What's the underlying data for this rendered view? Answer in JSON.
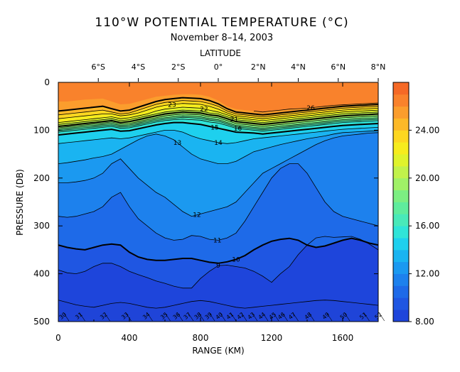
{
  "chart_data": {
    "type": "heatmap",
    "title": "110°W POTENTIAL TEMPERATURE (°C)",
    "subtitle": "November 8–14, 2003",
    "top_axis_label": "LATITUDE",
    "xlabel": "RANGE (KM)",
    "ylabel": "PRESSURE (DB)",
    "xlim": [
      0,
      1800
    ],
    "ylim": [
      500,
      0
    ],
    "x_ticks": [
      0,
      400,
      800,
      1200,
      1600
    ],
    "y_ticks": [
      0,
      100,
      200,
      300,
      400,
      500
    ],
    "latitude_ticks": [
      {
        "label": "6°S",
        "km": 225
      },
      {
        "label": "4°S",
        "km": 450
      },
      {
        "label": "2°S",
        "km": 675
      },
      {
        "label": "0°",
        "km": 900
      },
      {
        "label": "2°N",
        "km": 1125
      },
      {
        "label": "4°N",
        "km": 1350
      },
      {
        "label": "6°N",
        "km": 1575
      },
      {
        "label": "8°N",
        "km": 1800
      }
    ],
    "colorbar": {
      "min": 8,
      "max": 28,
      "step": 1,
      "tick_values": [
        8,
        12,
        16,
        20,
        24
      ],
      "tick_labels": [
        "8.00",
        "12.00",
        "16.00",
        "20.00",
        "24.00"
      ]
    },
    "contour_levels": [
      {
        "level": 26,
        "label": "26",
        "depth": [
          40,
          40,
          38,
          36,
          35,
          34,
          40,
          46,
          45,
          40,
          35,
          30,
          28,
          26,
          25,
          25,
          26,
          30,
          38,
          50,
          56,
          58,
          60,
          62,
          60,
          58,
          56,
          55,
          54,
          52,
          50,
          48,
          47,
          46,
          45,
          44,
          43
        ],
        "show": [
          false,
          false,
          false,
          false,
          false,
          false,
          false,
          false,
          false,
          false,
          false,
          false,
          false,
          false,
          false,
          false,
          false,
          false,
          false,
          false,
          false,
          false,
          true,
          true,
          true,
          true,
          true,
          true,
          true,
          true,
          true,
          true,
          true,
          true,
          true,
          true,
          true
        ],
        "label_km": 1420
      },
      {
        "level": 25,
        "label": "",
        "depth": [
          60,
          58,
          56,
          54,
          52,
          50,
          55,
          60,
          58,
          52,
          46,
          40,
          36,
          34,
          32,
          33,
          34,
          38,
          45,
          55,
          62,
          64,
          66,
          68,
          66,
          64,
          62,
          60,
          58,
          56,
          54,
          52,
          50,
          49,
          48,
          47,
          46
        ]
      },
      {
        "level": 24,
        "label": "",
        "depth": [
          68,
          66,
          64,
          62,
          60,
          58,
          62,
          66,
          64,
          58,
          52,
          46,
          42,
          40,
          38,
          39,
          40,
          44,
          50,
          60,
          66,
          68,
          70,
          72,
          70,
          68,
          66,
          64,
          62,
          60,
          58,
          56,
          54,
          53,
          52,
          51,
          50
        ]
      },
      {
        "level": 23,
        "label": "23",
        "depth": [
          76,
          74,
          72,
          70,
          68,
          66,
          66,
          70,
          68,
          64,
          58,
          52,
          48,
          46,
          44,
          45,
          46,
          50,
          56,
          64,
          70,
          72,
          74,
          76,
          74,
          72,
          70,
          68,
          66,
          64,
          62,
          60,
          58,
          57,
          56,
          55,
          54
        ],
        "label_km": 640
      },
      {
        "level": 22,
        "label": "22",
        "depth": [
          84,
          82,
          80,
          78,
          76,
          74,
          72,
          76,
          74,
          70,
          66,
          60,
          56,
          54,
          52,
          53,
          54,
          58,
          62,
          68,
          74,
          76,
          78,
          80,
          78,
          76,
          74,
          72,
          70,
          68,
          66,
          64,
          62,
          61,
          60,
          59,
          58
        ],
        "label_km": 820
      },
      {
        "level": 21,
        "label": "21",
        "depth": [
          88,
          86,
          84,
          82,
          80,
          78,
          76,
          80,
          78,
          74,
          70,
          66,
          62,
          60,
          58,
          59,
          60,
          64,
          66,
          72,
          78,
          80,
          82,
          84,
          82,
          80,
          78,
          76,
          74,
          72,
          70,
          68,
          66,
          65,
          64,
          63,
          62
        ],
        "label_km": 990
      },
      {
        "level": 20,
        "label": "",
        "depth": [
          92,
          90,
          88,
          86,
          84,
          82,
          80,
          84,
          82,
          78,
          74,
          70,
          66,
          64,
          62,
          63,
          64,
          68,
          70,
          76,
          82,
          84,
          86,
          88,
          86,
          84,
          82,
          80,
          78,
          76,
          74,
          72,
          70,
          69,
          68,
          67,
          66
        ]
      },
      {
        "level": 19,
        "label": "",
        "depth": [
          95,
          93,
          91,
          89,
          87,
          85,
          83,
          87,
          86,
          82,
          78,
          74,
          70,
          68,
          66,
          67,
          68,
          72,
          74,
          80,
          86,
          88,
          90,
          92,
          90,
          88,
          86,
          84,
          82,
          80,
          78,
          76,
          74,
          73,
          72,
          71,
          70
        ]
      },
      {
        "level": 18,
        "label": "",
        "depth": [
          98,
          96,
          94,
          92,
          90,
          88,
          86,
          90,
          89,
          85,
          81,
          77,
          74,
          72,
          70,
          71,
          72,
          76,
          78,
          84,
          90,
          92,
          94,
          96,
          94,
          92,
          90,
          88,
          86,
          84,
          82,
          80,
          78,
          77,
          76,
          75,
          74
        ]
      },
      {
        "level": 17,
        "label": "",
        "depth": [
          101,
          99,
          97,
          95,
          93,
          91,
          89,
          93,
          92,
          88,
          84,
          80,
          77,
          75,
          73,
          74,
          75,
          79,
          81,
          87,
          93,
          95,
          97,
          99,
          97,
          95,
          93,
          91,
          89,
          87,
          85,
          83,
          81,
          80,
          79,
          78,
          77
        ]
      },
      {
        "level": 16,
        "label": "16",
        "depth": [
          104,
          102,
          100,
          98,
          96,
          94,
          92,
          96,
          95,
          91,
          87,
          83,
          80,
          78,
          77,
          78,
          79,
          83,
          85,
          90,
          96,
          98,
          100,
          102,
          100,
          98,
          96,
          94,
          92,
          90,
          88,
          86,
          84,
          83,
          82,
          81,
          80
        ],
        "label_km": 1010
      },
      {
        "level": 15,
        "label": "15",
        "depth": [
          110,
          108,
          106,
          104,
          102,
          100,
          98,
          102,
          101,
          97,
          93,
          89,
          86,
          84,
          84,
          86,
          88,
          92,
          96,
          100,
          104,
          105,
          106,
          108,
          106,
          104,
          102,
          100,
          98,
          96,
          94,
          92,
          90,
          89,
          88,
          87,
          86
        ],
        "label_km": 880
      },
      {
        "level": 14,
        "label": "14",
        "depth": [
          128,
          126,
          124,
          122,
          120,
          118,
          116,
          118,
          116,
          112,
          108,
          104,
          100,
          100,
          104,
          112,
          118,
          122,
          126,
          128,
          126,
          122,
          118,
          116,
          114,
          112,
          110,
          108,
          106,
          104,
          102,
          100,
          98,
          97,
          96,
          95,
          94
        ],
        "label_km": 900
      },
      {
        "level": 13,
        "label": "13",
        "depth": [
          170,
          168,
          165,
          162,
          158,
          155,
          150,
          140,
          130,
          120,
          112,
          108,
          112,
          120,
          135,
          150,
          160,
          165,
          170,
          170,
          165,
          155,
          145,
          140,
          135,
          130,
          126,
          122,
          118,
          115,
          112,
          108,
          105,
          104,
          103,
          102,
          101
        ],
        "label_km": 670
      },
      {
        "level": 12,
        "label": "12",
        "depth": [
          210,
          210,
          208,
          205,
          200,
          190,
          170,
          160,
          180,
          200,
          215,
          230,
          240,
          255,
          270,
          280,
          275,
          270,
          265,
          260,
          250,
          230,
          210,
          190,
          180,
          170,
          160,
          150,
          140,
          130,
          122,
          116,
          112,
          110,
          108,
          106,
          105
        ],
        "label_km": 780
      },
      {
        "level": 11,
        "label": "11",
        "depth": [
          280,
          282,
          280,
          275,
          270,
          260,
          240,
          230,
          260,
          285,
          300,
          315,
          325,
          330,
          328,
          320,
          322,
          328,
          330,
          325,
          315,
          290,
          260,
          230,
          200,
          180,
          170,
          170,
          190,
          220,
          250,
          270,
          280,
          285,
          290,
          295,
          300
        ],
        "label_km": 895
      },
      {
        "level": 10,
        "label": "10",
        "depth": [
          340,
          345,
          348,
          350,
          345,
          340,
          338,
          340,
          355,
          365,
          370,
          372,
          372,
          370,
          368,
          368,
          372,
          376,
          378,
          375,
          370,
          362,
          350,
          340,
          332,
          328,
          326,
          330,
          340,
          345,
          342,
          336,
          330,
          326,
          330,
          336,
          340
        ],
        "label_km": 1000
      },
      {
        "level": 9,
        "label": "9",
        "depth": [
          392,
          398,
          400,
          395,
          385,
          378,
          378,
          385,
          395,
          402,
          408,
          415,
          420,
          426,
          430,
          430,
          410,
          395,
          383,
          382,
          385,
          388,
          395,
          405,
          418,
          400,
          385,
          360,
          340,
          325,
          322,
          324,
          323,
          322,
          328,
          338,
          350
        ],
        "label_km": 900
      },
      {
        "level": 8,
        "label": "",
        "depth": [
          455,
          460,
          465,
          468,
          470,
          466,
          462,
          460,
          462,
          466,
          470,
          472,
          470,
          466,
          462,
          458,
          456,
          458,
          462,
          466,
          470,
          472,
          470,
          468,
          466,
          464,
          462,
          460,
          458,
          456,
          455,
          456,
          458,
          460,
          462,
          464,
          466
        ]
      }
    ],
    "station_labels": [
      {
        "label": "30",
        "km": 40
      },
      {
        "label": "31",
        "km": 130
      },
      {
        "label": "32",
        "km": 270
      },
      {
        "label": "33",
        "km": 390
      },
      {
        "label": "34",
        "km": 510
      },
      {
        "label": "35",
        "km": 610
      },
      {
        "label": "36",
        "km": 680
      },
      {
        "label": "37",
        "km": 740
      },
      {
        "label": "38",
        "km": 800
      },
      {
        "label": "39",
        "km": 860
      },
      {
        "label": "40",
        "km": 920
      },
      {
        "label": "41",
        "km": 980
      },
      {
        "label": "42",
        "km": 1040
      },
      {
        "label": "43",
        "km": 1100
      },
      {
        "label": "44",
        "km": 1160
      },
      {
        "label": "45",
        "km": 1220
      },
      {
        "label": "46",
        "km": 1270
      },
      {
        "label": "47",
        "km": 1330
      },
      {
        "label": "48",
        "km": 1420
      },
      {
        "label": "49",
        "km": 1520
      },
      {
        "label": "50",
        "km": 1620
      },
      {
        "label": "51",
        "km": 1730
      },
      {
        "label": "52",
        "km": 1815
      }
    ]
  }
}
